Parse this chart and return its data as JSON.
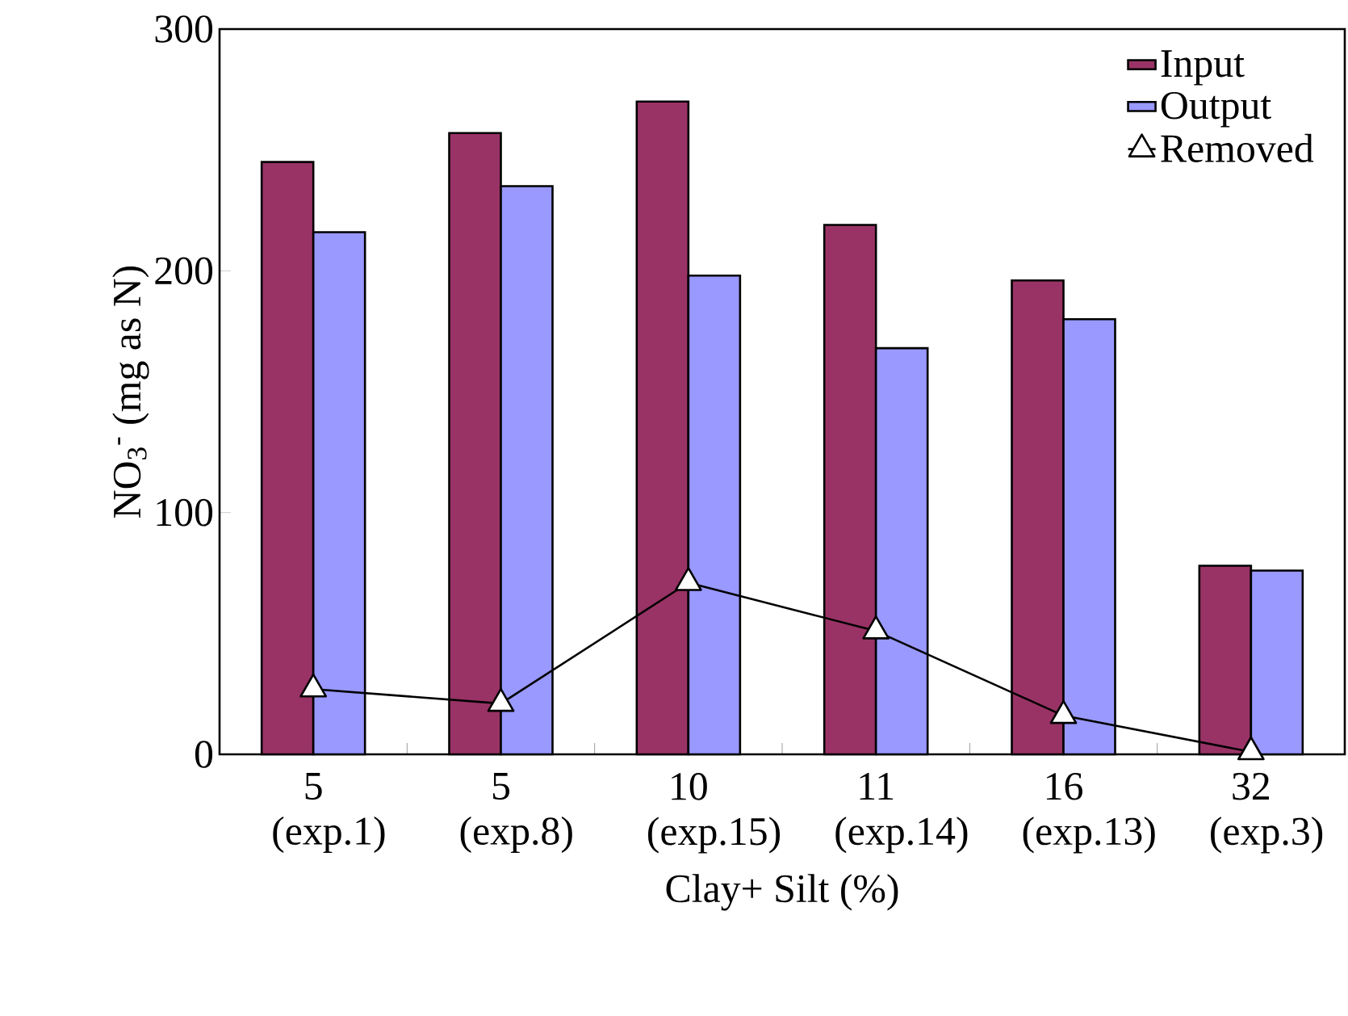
{
  "chart_data": {
    "type": "bar",
    "xlabel": "Clay+ Silt (%)",
    "ylabel": "NO$_{3}$$^{-}$ (mg as N)",
    "categories": [
      "5 (exp.1)",
      "5 (exp.8)",
      "10 (exp.15)",
      "11 (exp.14)",
      "16 (exp.13)",
      "32 (exp.3)"
    ],
    "series": [
      {
        "name": "Input",
        "color": "#993366",
        "values": [
          245,
          257,
          270,
          219,
          196,
          78
        ]
      },
      {
        "name": "Output",
        "color": "#9999ff",
        "values": [
          216,
          235,
          198,
          168,
          180,
          76
        ]
      },
      {
        "name": "Removed",
        "type": "line",
        "color": "#000000",
        "marker": "triangle",
        "values": [
          27,
          21,
          71,
          51,
          16,
          1
        ]
      }
    ],
    "ylim": [
      0,
      300
    ],
    "yticks": [
      0,
      100,
      200,
      300
    ],
    "grid": false,
    "legend": "top right"
  }
}
